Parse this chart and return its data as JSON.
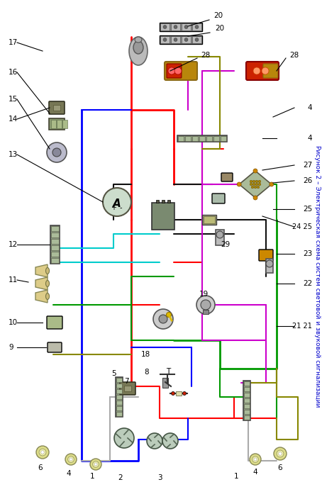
{
  "figsize": [
    4.54,
    6.87
  ],
  "dpi": 100,
  "bg": "#FFFFFF",
  "caption": "Рисунок 2 – Электрическая схема систем световой и звуковой сигнализации",
  "caption_color": "#0000CC",
  "caption_fontsize": 6.5,
  "wires": {
    "red": "#FF0000",
    "blue": "#0000FF",
    "green": "#009900",
    "black": "#111111",
    "cyan": "#00CCCC",
    "violet": "#CC00CC",
    "olive": "#888800",
    "gray": "#AAAAAA"
  },
  "label_fs": 7.5,
  "label_color": "#000000"
}
